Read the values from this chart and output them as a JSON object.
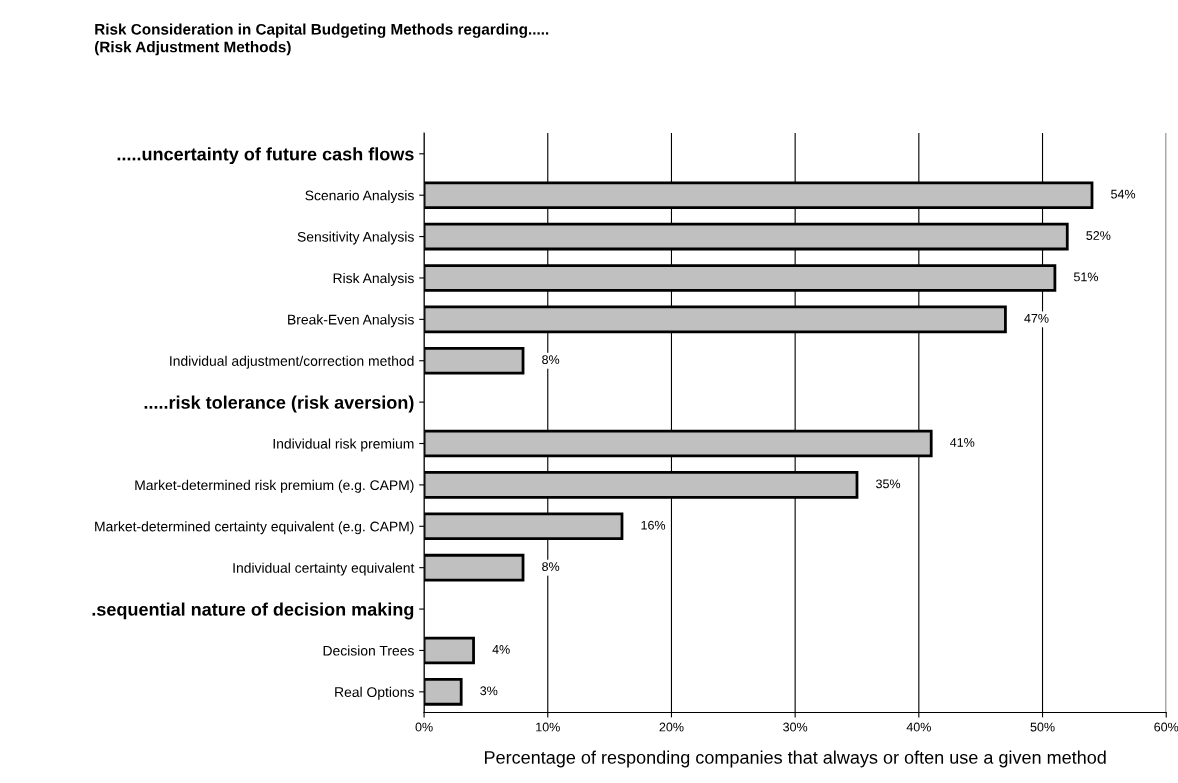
{
  "chart_data": {
    "type": "bar",
    "orientation": "horizontal",
    "title": "Risk Consideration in Capital Budgeting Methods regarding.....\n(Risk Adjustment Methods)",
    "xlabel": "Percentage of responding companies that always or often use a given method",
    "categories": [
      ".....uncertainty of future cash flows",
      "Scenario Analysis",
      "Sensitivity Analysis",
      "Risk Analysis",
      "Break-Even Analysis",
      "Individual adjustment/correction method",
      ".....risk tolerance (risk aversion)",
      "Individual risk premium",
      "Market-determined risk premium (e.g. CAPM)",
      "Market-determined certainty equivalent (e.g. CAPM)",
      "Individual certainty equivalent",
      ".sequential nature of decision making",
      "Decision Trees",
      "Real Options"
    ],
    "values": [
      null,
      54,
      52,
      51,
      47,
      8,
      null,
      41,
      35,
      16,
      8,
      null,
      4,
      3
    ],
    "value_labels": [
      null,
      "54%",
      "52%",
      "51%",
      "47%",
      "8%",
      null,
      "41%",
      "35%",
      "16%",
      "8%",
      null,
      "4%",
      "3%"
    ],
    "color": "#c0c0c0",
    "xlim": [
      0,
      60
    ],
    "xticks": [
      {
        "value": 0,
        "label": "0%"
      },
      {
        "value": 10,
        "label": "10%"
      },
      {
        "value": 20,
        "label": "20%"
      },
      {
        "value": 30,
        "label": "30%"
      },
      {
        "value": 40,
        "label": "40%"
      },
      {
        "value": 50,
        "label": "50%"
      },
      {
        "value": 60,
        "label": "60%"
      }
    ],
    "grid": "x"
  }
}
